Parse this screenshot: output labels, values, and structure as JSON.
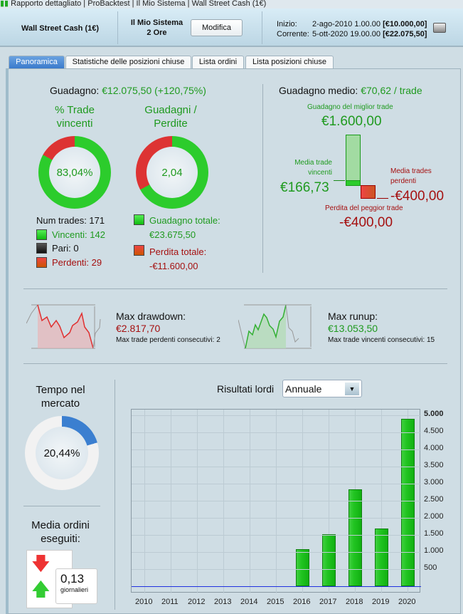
{
  "titlebar": {
    "items": [
      "Rapporto dettagliato",
      "ProBacktest",
      "Il Mio Sistema",
      "Wall Street Cash (1€)"
    ]
  },
  "header": {
    "instrument": "Wall Street Cash (1€)",
    "system_name": "Il Mio Sistema",
    "timeframe": "2 Ore",
    "edit_button": "Modifica",
    "start_label": "Inizio:",
    "start_date": "2-ago-2010 1.00.00",
    "start_capital": "[€10.000,00]",
    "current_label": "Corrente:",
    "current_date": "5-ott-2020 19.00.00",
    "current_capital": "[€22.075,50]"
  },
  "tabs": [
    "Panoramica",
    "Statistiche delle posizioni chiuse",
    "Lista ordini",
    "Lista posizioni chiuse"
  ],
  "overview": {
    "gain_label": "Guadagno:",
    "gain_value": "€12.075,50 (+120,75%)",
    "win_title": "% Trade vincenti",
    "win_pct_text": "83,04%",
    "win_fraction": 0.8304,
    "gl_title": "Guadagni / Perdite",
    "gl_ratio_text": "2,04",
    "gl_gain_fraction": 0.671,
    "num_trades": "Num trades: 171",
    "winners": "Vincenti: 142",
    "even": "Pari: 0",
    "losers": "Perdenti: 29",
    "total_gain_label": "Guadagno totale:",
    "total_gain": "€23.675,50",
    "total_loss_label": "Perdita totale:",
    "total_loss": "-€11.600,00",
    "avg_gain_label": "Guadagno medio:",
    "avg_gain_value": "€70,62 / trade",
    "best_label": "Guadagno del miglior trade",
    "best_value": "€1.600,00",
    "avg_win_label": "Media trade vincenti",
    "avg_win_value": "€166,73",
    "avg_loss_label": "Media trades perdenti",
    "avg_loss_value": "-€400,00",
    "worst_label": "Perdita del peggior trade",
    "worst_value": "-€400,00"
  },
  "drawdown": {
    "label": "Max drawdown:",
    "value": "€2.817,70",
    "consec_label": "Max trade perdenti consecutivi:",
    "consec_value": "2"
  },
  "runup": {
    "label": "Max runup:",
    "value": "€13.053,50",
    "consec_label": "Max trade vincenti consecutivi:",
    "consec_value": "15"
  },
  "market_time": {
    "title": "Tempo nel mercato",
    "pct_text": "20,44%",
    "fraction": 0.2044
  },
  "orders": {
    "title": "Media ordini eseguiti:",
    "value": "0,13",
    "unit": "giornalieri"
  },
  "results": {
    "label": "Risultati lordi",
    "period": "Annuale"
  },
  "chart_data": {
    "type": "bar",
    "title": "Risultati lordi",
    "categories": [
      "2010",
      "2011",
      "2012",
      "2013",
      "2014",
      "2015",
      "2016",
      "2017",
      "2018",
      "2019",
      "2020"
    ],
    "values": [
      0,
      0,
      0,
      0,
      0,
      0,
      1080,
      1520,
      2830,
      1690,
      4900
    ],
    "ylim": [
      0,
      5000
    ],
    "yticks": [
      "500",
      "1.000",
      "1.500",
      "2.000",
      "2.500",
      "3.000",
      "3.500",
      "4.000",
      "4.500",
      "5.000"
    ],
    "ytick_values": [
      500,
      1000,
      1500,
      2000,
      2500,
      3000,
      3500,
      4000,
      4500,
      5000
    ],
    "grid": true,
    "colors": {
      "bar": "#22c422",
      "zero_line": "#2030e0"
    }
  }
}
